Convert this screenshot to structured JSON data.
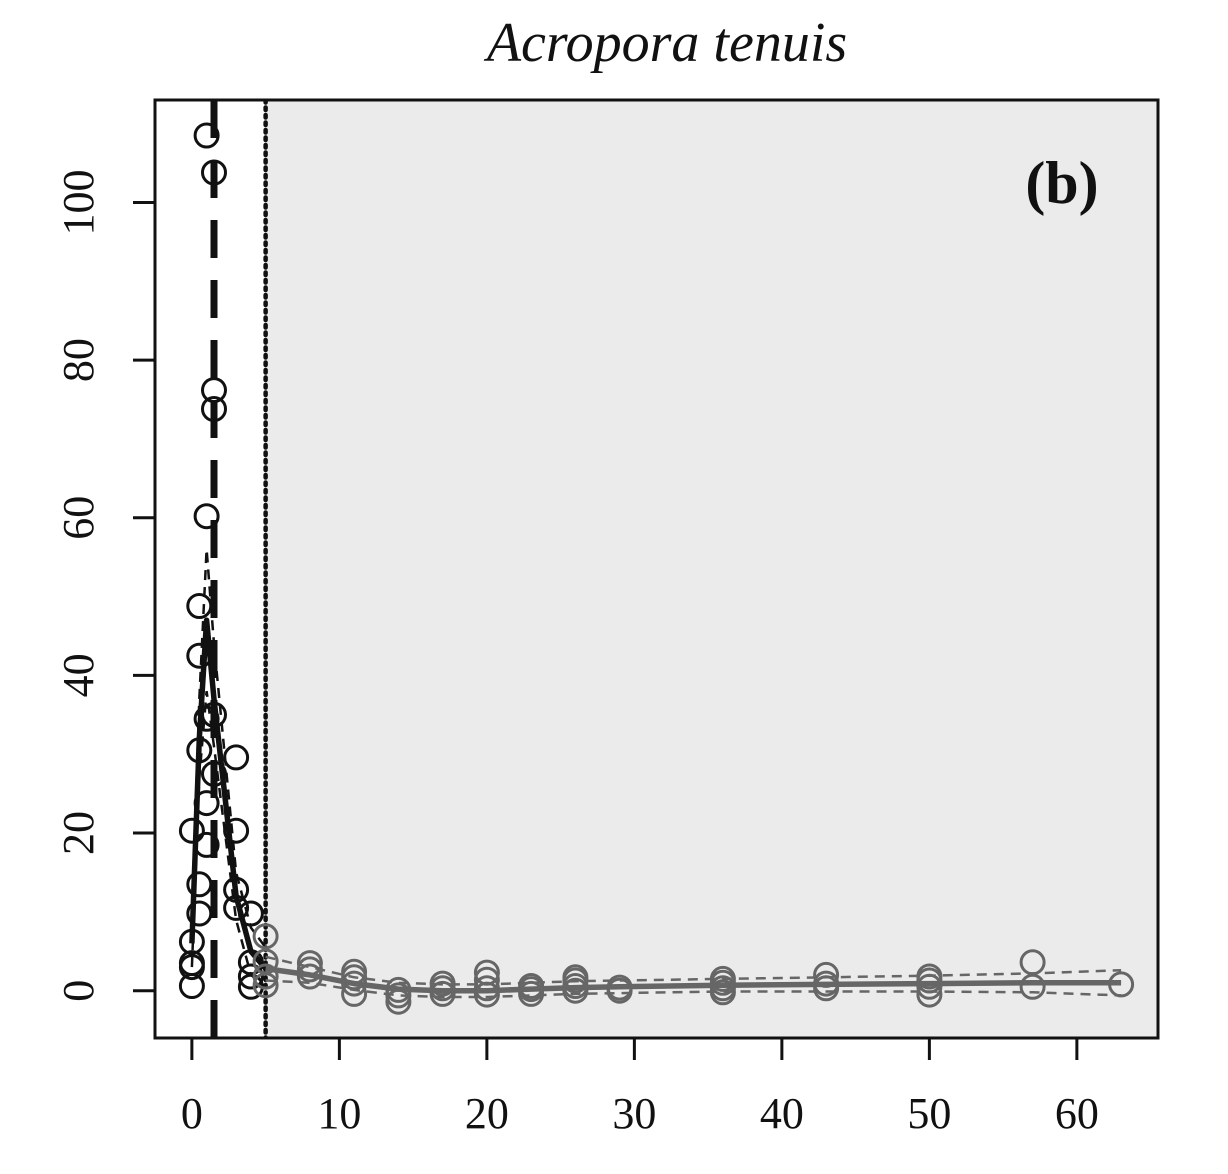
{
  "chart_data": {
    "type": "scatter",
    "title": "Acropora tenuis",
    "panel_label": "(b)",
    "xlim": [
      -2.5,
      65.5
    ],
    "ylim": [
      -6,
      113
    ],
    "x_ticks": [
      0,
      10,
      20,
      30,
      40,
      50,
      60
    ],
    "y_ticks": [
      0,
      20,
      40,
      60,
      80,
      100
    ],
    "x_tick_labels": [
      "0",
      "10",
      "20",
      "30",
      "40",
      "50",
      "60"
    ],
    "y_tick_labels": [
      "0",
      "20",
      "40",
      "60",
      "80",
      "100"
    ],
    "shaded_region": {
      "x_from": 5,
      "color": "#ebebeb"
    },
    "vertical_lines": [
      {
        "x": 1.5,
        "style": "longdash",
        "color": "#111111"
      },
      {
        "x": 5,
        "style": "dotted",
        "color": "#111111"
      }
    ],
    "series": [
      {
        "color": "#111111",
        "points": [
          [
            0,
            0.6
          ],
          [
            0,
            3.0
          ],
          [
            0,
            3.5
          ],
          [
            0,
            6.2
          ],
          [
            0,
            20.3
          ],
          [
            0.5,
            9.8
          ],
          [
            0.5,
            13.5
          ],
          [
            0.5,
            30.5
          ],
          [
            0.5,
            42.5
          ],
          [
            0.5,
            48.8
          ],
          [
            1,
            18.5
          ],
          [
            1,
            23.8
          ],
          [
            1,
            34.5
          ],
          [
            1,
            60.2
          ],
          [
            1,
            108.5
          ],
          [
            1.5,
            27.5
          ],
          [
            1.5,
            35.0
          ],
          [
            1.5,
            73.8
          ],
          [
            1.5,
            76.2
          ],
          [
            1.5,
            103.8
          ],
          [
            3,
            10.5
          ],
          [
            3,
            12.8
          ],
          [
            3,
            20.3
          ],
          [
            3,
            29.6
          ],
          [
            4,
            0.5
          ],
          [
            4,
            1.8
          ],
          [
            4,
            3.6
          ],
          [
            4,
            9.8
          ]
        ],
        "fit": [
          [
            0,
            6
          ],
          [
            0.5,
            32
          ],
          [
            1,
            47
          ],
          [
            1.5,
            37
          ],
          [
            3,
            12
          ],
          [
            4,
            5
          ],
          [
            5,
            2.8
          ]
        ],
        "ci_upper": [
          [
            0,
            9
          ],
          [
            0.5,
            37
          ],
          [
            1,
            56
          ],
          [
            1.5,
            44
          ],
          [
            3,
            15
          ],
          [
            4,
            8
          ],
          [
            5,
            5.5
          ]
        ],
        "ci_lower": [
          [
            0,
            3
          ],
          [
            0.5,
            27
          ],
          [
            1,
            38
          ],
          [
            1.5,
            31
          ],
          [
            3,
            9
          ],
          [
            4,
            2
          ],
          [
            5,
            0.5
          ]
        ]
      },
      {
        "color": "#666666",
        "points": [
          [
            5,
            0.7
          ],
          [
            5,
            1.8
          ],
          [
            5,
            3.7
          ],
          [
            5,
            6.9
          ],
          [
            8,
            1.8
          ],
          [
            8,
            2.7
          ],
          [
            8,
            3.5
          ],
          [
            11,
            -0.4
          ],
          [
            11,
            0.9
          ],
          [
            11,
            1.7
          ],
          [
            11,
            2.4
          ],
          [
            14,
            -1.4
          ],
          [
            14,
            -0.6
          ],
          [
            14,
            0.1
          ],
          [
            17,
            -0.4
          ],
          [
            17,
            0.3
          ],
          [
            17,
            0.9
          ],
          [
            20,
            -0.5
          ],
          [
            20,
            0.3
          ],
          [
            20,
            1.4
          ],
          [
            20,
            2.3
          ],
          [
            23,
            -0.4
          ],
          [
            23,
            0.2
          ],
          [
            23,
            0.6
          ],
          [
            26,
            0.0
          ],
          [
            26,
            0.6
          ],
          [
            26,
            1.3
          ],
          [
            26,
            1.7
          ],
          [
            29,
            0.0
          ],
          [
            29,
            0.4
          ],
          [
            36,
            -0.2
          ],
          [
            36,
            0.3
          ],
          [
            36,
            1.0
          ],
          [
            36,
            1.5
          ],
          [
            43,
            0.3
          ],
          [
            43,
            0.9
          ],
          [
            43,
            2.0
          ],
          [
            50,
            -0.5
          ],
          [
            50,
            0.5
          ],
          [
            50,
            1.3
          ],
          [
            50,
            1.8
          ],
          [
            57,
            0.5
          ],
          [
            57,
            3.6
          ],
          [
            63,
            0.8
          ]
        ],
        "fit": [
          [
            5,
            2.8
          ],
          [
            8,
            2.0
          ],
          [
            11,
            0.9
          ],
          [
            14,
            0.2
          ],
          [
            17,
            0.0
          ],
          [
            20,
            0.0
          ],
          [
            23,
            0.2
          ],
          [
            26,
            0.4
          ],
          [
            29,
            0.5
          ],
          [
            36,
            0.7
          ],
          [
            43,
            0.8
          ],
          [
            50,
            0.9
          ],
          [
            57,
            1.0
          ],
          [
            63,
            1.0
          ]
        ],
        "ci_upper": [
          [
            5,
            4.3
          ],
          [
            8,
            3.0
          ],
          [
            11,
            1.7
          ],
          [
            14,
            1.0
          ],
          [
            17,
            0.8
          ],
          [
            20,
            0.8
          ],
          [
            23,
            1.0
          ],
          [
            26,
            1.2
          ],
          [
            29,
            1.3
          ],
          [
            36,
            1.5
          ],
          [
            43,
            1.7
          ],
          [
            50,
            1.9
          ],
          [
            57,
            2.2
          ],
          [
            63,
            2.6
          ]
        ],
        "ci_lower": [
          [
            5,
            1.3
          ],
          [
            8,
            1.0
          ],
          [
            11,
            0.1
          ],
          [
            14,
            -0.6
          ],
          [
            17,
            -0.8
          ],
          [
            20,
            -0.8
          ],
          [
            23,
            -0.6
          ],
          [
            26,
            -0.4
          ],
          [
            29,
            -0.3
          ],
          [
            36,
            -0.1
          ],
          [
            43,
            -0.1
          ],
          [
            50,
            -0.1
          ],
          [
            57,
            -0.2
          ],
          [
            63,
            -0.6
          ]
        ]
      }
    ]
  }
}
